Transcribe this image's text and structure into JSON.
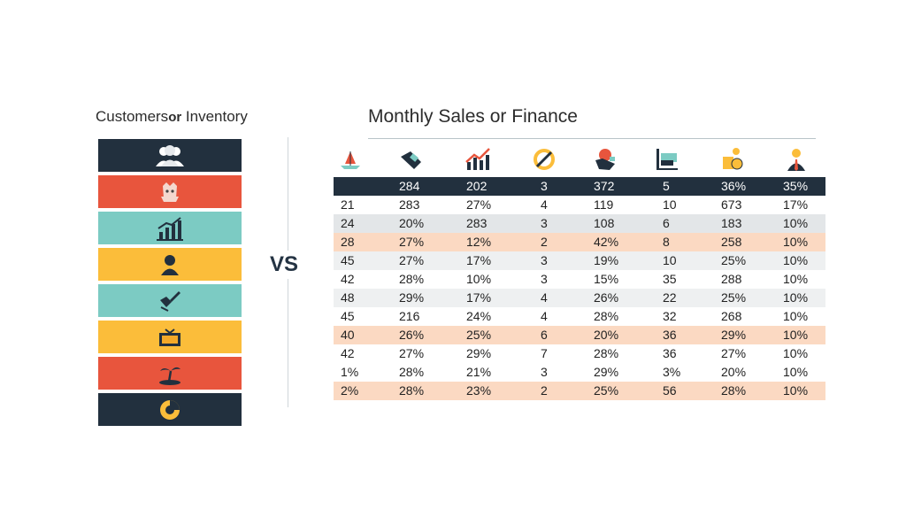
{
  "left": {
    "title_a": "Customers",
    "title_or": "or",
    "title_b": " Inventory",
    "bars": [
      {
        "color": "#22303e",
        "icon": "people-group-icon"
      },
      {
        "color": "#e8553d",
        "icon": "mascot-face-icon"
      },
      {
        "color": "#7ccbc3",
        "icon": "bar-chart-growth-icon"
      },
      {
        "color": "#fbbd3a",
        "icon": "person-icon"
      },
      {
        "color": "#7ccbc3",
        "icon": "pen-edit-icon"
      },
      {
        "color": "#fbbd3a",
        "icon": "tv-box-icon"
      },
      {
        "color": "#e8553d",
        "icon": "island-palm-icon"
      },
      {
        "color": "#22303e",
        "icon": "pie-gauge-icon"
      }
    ]
  },
  "vs_label": "VS",
  "right": {
    "title": "Monthly Sales or Finance",
    "icons": [
      "boat-icon",
      "hand-coins-icon",
      "growth-chart-icon",
      "target-ring-icon",
      "heart-hand-icon",
      "cash-chart-icon",
      "coin-stack-icon",
      "businessman-icon"
    ],
    "header": [
      "",
      "284",
      "202",
      "3",
      "372",
      "5",
      "36%",
      "35%"
    ],
    "rows": [
      {
        "style": "white",
        "cells": [
          "21",
          "283",
          "27%",
          "4",
          "119",
          "10",
          "673",
          "17%"
        ]
      },
      {
        "style": "gray",
        "cells": [
          "24",
          "20%",
          "283",
          "3",
          "108",
          "6",
          "183",
          "10%"
        ]
      },
      {
        "style": "peach",
        "cells": [
          "28",
          "27%",
          "12%",
          "2",
          "42%",
          "8",
          "258",
          "10%"
        ]
      },
      {
        "style": "lgray",
        "cells": [
          "45",
          "27%",
          "17%",
          "3",
          "19%",
          "10",
          "25%",
          "10%"
        ]
      },
      {
        "style": "white",
        "cells": [
          "42",
          "28%",
          "10%",
          "3",
          "15%",
          "35",
          "288",
          "10%"
        ]
      },
      {
        "style": "lgray",
        "cells": [
          "48",
          "29%",
          "17%",
          "4",
          "26%",
          "22",
          "25%",
          "10%"
        ]
      },
      {
        "style": "white",
        "cells": [
          "45",
          "216",
          "24%",
          "4",
          "28%",
          "32",
          "268",
          "10%"
        ]
      },
      {
        "style": "peach",
        "cells": [
          "40",
          "26%",
          "25%",
          "6",
          "20%",
          "36",
          "29%",
          "10%"
        ]
      },
      {
        "style": "white",
        "cells": [
          "42",
          "27%",
          "29%",
          "7",
          "28%",
          "36",
          "27%",
          "10%"
        ]
      },
      {
        "style": "white",
        "cells": [
          "1%",
          "28%",
          "21%",
          "3",
          "29%",
          "3%",
          "20%",
          "10%"
        ]
      },
      {
        "style": "peach",
        "cells": [
          "2%",
          "28%",
          "23%",
          "2",
          "25%",
          "56",
          "28%",
          "10%"
        ]
      }
    ]
  }
}
